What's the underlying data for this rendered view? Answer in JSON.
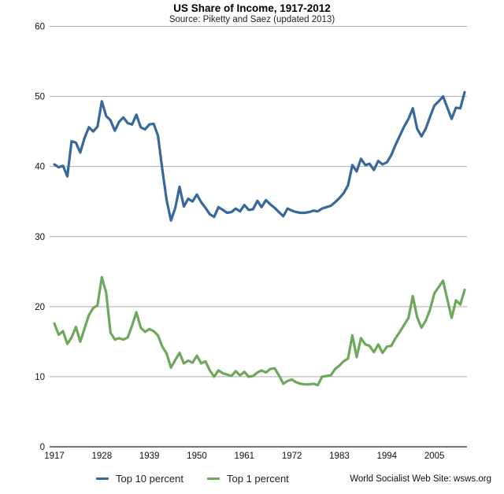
{
  "header": {
    "title": "US Share of Income, 1917-2012",
    "subtitle": "Source: Piketty and Saez (updated 2013)"
  },
  "footer": {
    "credit": "World Socialist Web Site: wsws.org"
  },
  "legend": [
    {
      "label": "Top 10 percent",
      "color": "#36689b"
    },
    {
      "label": "Top 1 percent",
      "color": "#6da85c"
    }
  ],
  "colors": {
    "top10_line": "#36689b",
    "top1_line": "#6da85c",
    "gridline": "#ababab",
    "axis_line": "#222222",
    "text": "#111111",
    "background": "#ffffff"
  },
  "chart_data": {
    "type": "line",
    "title": "US Share of Income, 1917-2012",
    "subtitle": "Source: Piketty and Saez (updated 2013)",
    "xlabel": "",
    "ylabel": "",
    "x_start": 1917,
    "x_end": 2012,
    "xlim": [
      1917,
      2012
    ],
    "ylim": [
      0,
      60
    ],
    "y_ticks": [
      0,
      10,
      20,
      30,
      40,
      50,
      60
    ],
    "x_tick_years": [
      1917,
      1928,
      1939,
      1950,
      1961,
      1972,
      1983,
      1994,
      2005
    ],
    "x_tick_labels": [
      "1917",
      "1928",
      "1939",
      "1950",
      "1961",
      "1972",
      "1983",
      "1994",
      "2005"
    ],
    "grid": "horizontal-only",
    "legend_position": "bottom-left",
    "series": [
      {
        "name": "Top 10 percent",
        "color": "#36689b",
        "values": [
          40.3,
          39.9,
          40.1,
          38.6,
          43.6,
          43.4,
          42.0,
          44.1,
          45.6,
          45.0,
          45.7,
          49.3,
          47.2,
          46.6,
          45.1,
          46.4,
          47.0,
          46.2,
          46.0,
          47.4,
          45.6,
          45.3,
          46.0,
          46.1,
          44.4,
          39.6,
          35.2,
          32.3,
          34.1,
          37.1,
          34.3,
          35.4,
          35.0,
          36.0,
          34.9,
          34.1,
          33.2,
          32.8,
          34.2,
          33.8,
          33.4,
          33.5,
          34.0,
          33.6,
          34.5,
          33.8,
          33.9,
          35.1,
          34.2,
          35.2,
          34.6,
          34.1,
          33.5,
          32.9,
          34.0,
          33.7,
          33.5,
          33.4,
          33.4,
          33.5,
          33.7,
          33.6,
          34.0,
          34.2,
          34.4,
          34.9,
          35.5,
          36.2,
          37.3,
          40.2,
          39.3,
          41.1,
          40.2,
          40.4,
          39.5,
          40.8,
          40.3,
          40.6,
          41.6,
          43.1,
          44.4,
          45.7,
          46.8,
          48.3,
          45.4,
          44.3,
          45.4,
          47.1,
          48.7,
          49.3,
          50.0,
          48.4,
          46.8,
          48.4,
          48.3,
          50.6
        ]
      },
      {
        "name": "Top 1 percent",
        "color": "#6da85c",
        "values": [
          17.6,
          16.0,
          16.5,
          14.7,
          15.6,
          17.1,
          15.0,
          16.9,
          18.8,
          19.8,
          20.2,
          24.2,
          22.0,
          16.3,
          15.3,
          15.5,
          15.3,
          15.6,
          17.3,
          19.2,
          17.0,
          16.4,
          16.8,
          16.5,
          15.9,
          14.3,
          13.3,
          11.3,
          12.4,
          13.4,
          11.9,
          12.3,
          12.0,
          13.0,
          11.9,
          12.2,
          10.9,
          10.0,
          10.9,
          10.5,
          10.3,
          10.1,
          10.8,
          10.2,
          10.7,
          10.0,
          10.1,
          10.6,
          10.9,
          10.6,
          11.1,
          11.2,
          10.2,
          9.0,
          9.4,
          9.6,
          9.2,
          9.0,
          8.9,
          8.9,
          9.0,
          8.8,
          10.0,
          10.1,
          10.2,
          11.1,
          11.6,
          12.2,
          12.6,
          15.9,
          12.8,
          15.5,
          14.6,
          14.4,
          13.5,
          14.6,
          13.4,
          14.3,
          14.4,
          15.5,
          16.4,
          17.4,
          18.4,
          21.5,
          18.5,
          17.0,
          18.0,
          19.6,
          21.9,
          22.8,
          23.7,
          21.0,
          18.4,
          20.9,
          20.3,
          22.4
        ]
      }
    ]
  }
}
